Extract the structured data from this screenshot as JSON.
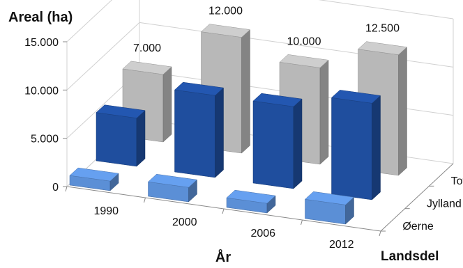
{
  "chart_data": {
    "type": "bar",
    "subtype": "3d-column",
    "categories": [
      "1990",
      "2000",
      "2006",
      "2012"
    ],
    "series": [
      {
        "name": "Øerne",
        "values": [
          1000,
          1500,
          1000,
          2000
        ],
        "color": "#5b8fd6"
      },
      {
        "name": "Jylland",
        "values": [
          5000,
          8500,
          8500,
          10000
        ],
        "color": "#1f4e9e"
      },
      {
        "name": "Total",
        "values": [
          7000,
          12000,
          10000,
          12500
        ],
        "color": "#b8b8b8",
        "data_labels": [
          "7.000",
          "12.000",
          "10.000",
          "12.500"
        ]
      }
    ],
    "ylabel": "Areal (ha)",
    "xlabel": "År",
    "depth_label": "Landsdel",
    "ylim": [
      0,
      15000
    ],
    "yticks": [
      0,
      5000,
      10000,
      15000
    ],
    "ytick_labels": [
      "0",
      "5.000",
      "10.000",
      "15.000"
    ],
    "grid": true,
    "legend": "none"
  }
}
